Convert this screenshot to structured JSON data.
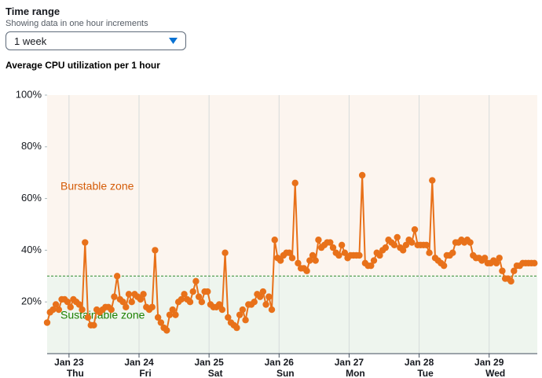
{
  "header": {
    "title": "Time range",
    "description": "Showing data in one hour increments"
  },
  "dropdown": {
    "selected": "1 week"
  },
  "chart_data": {
    "type": "line",
    "title": "Average CPU utilization per 1 hour",
    "series": [
      {
        "name": "Average CPU utilization",
        "color": "#e8711a",
        "values": [
          12,
          16,
          17,
          19,
          17,
          21,
          21,
          20,
          18,
          21,
          20,
          19,
          17,
          43,
          14,
          11,
          11,
          17,
          16,
          17,
          18,
          18,
          17,
          22,
          30,
          21,
          20,
          18,
          23,
          20,
          23,
          22,
          21,
          23,
          18,
          17,
          18,
          40,
          14,
          12,
          10,
          9,
          15,
          17,
          15,
          20,
          21,
          23,
          21,
          20,
          24,
          28,
          22,
          20,
          24,
          24,
          19,
          18,
          18,
          19,
          17,
          39,
          14,
          12,
          11,
          10,
          15,
          17,
          13,
          19,
          19,
          20,
          23,
          22,
          24,
          19,
          22,
          17,
          44,
          37,
          36,
          38,
          39,
          39,
          37,
          66,
          35,
          33,
          33,
          32,
          36,
          38,
          36,
          44,
          41,
          42,
          43,
          43,
          41,
          39,
          38,
          42,
          39,
          37,
          38,
          38,
          38,
          38,
          69,
          35,
          34,
          34,
          36,
          39,
          38,
          40,
          41,
          44,
          43,
          42,
          45,
          41,
          40,
          42,
          44,
          43,
          48,
          42,
          42,
          42,
          42,
          39,
          67,
          37,
          36,
          35,
          34,
          38,
          38,
          39,
          43,
          43,
          44,
          43,
          44,
          43,
          38,
          37,
          37,
          36,
          37,
          35,
          35,
          36,
          35,
          37,
          32,
          29,
          29,
          28,
          32,
          34,
          34,
          35,
          35,
          35,
          35,
          35
        ]
      }
    ],
    "xlim": [
      0,
      168
    ],
    "xticks": [
      {
        "value": 7.5,
        "label": "Jan 23"
      },
      {
        "value": 31.5,
        "label": "Jan 24"
      },
      {
        "value": 55.5,
        "label": "Jan 25"
      },
      {
        "value": 79.5,
        "label": "Jan 26"
      },
      {
        "value": 103.5,
        "label": "Jan 27"
      },
      {
        "value": 127.5,
        "label": "Jan 28"
      },
      {
        "value": 151.5,
        "label": "Jan 29"
      }
    ],
    "xtick_sublabels": [
      "Thu",
      "Fri",
      "Sat",
      "Sun",
      "Mon",
      "Tue",
      "Wed"
    ],
    "ylim": [
      0,
      100
    ],
    "yticks": [
      {
        "value": 20,
        "label": "20%"
      },
      {
        "value": 40,
        "label": "40%"
      },
      {
        "value": 60,
        "label": "60%"
      },
      {
        "value": 80,
        "label": "80%"
      },
      {
        "value": 100,
        "label": "100%"
      }
    ],
    "threshold": 30,
    "threshold_color": "#2e8b2e",
    "zones": [
      {
        "label": "Burstable zone",
        "color": "#fcf5ef",
        "text_color": "#d45b07"
      },
      {
        "label": "Sustainable zone",
        "color": "#eef5ee",
        "text_color": "#1d8102"
      }
    ],
    "xgrid": true
  }
}
